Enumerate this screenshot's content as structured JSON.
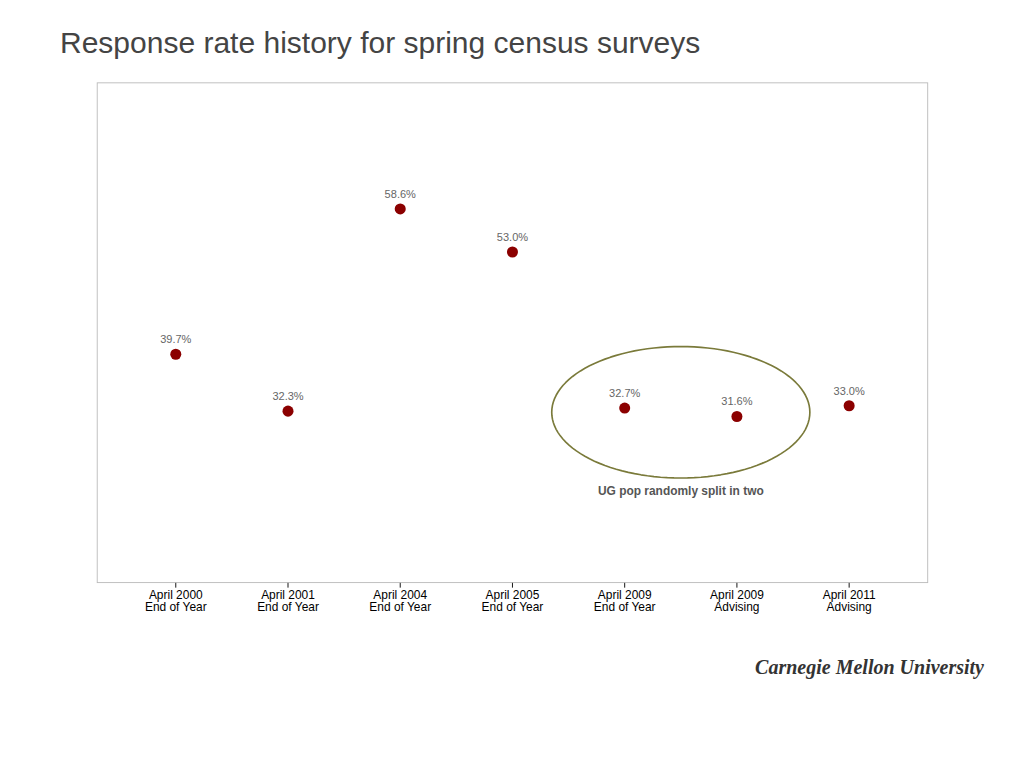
{
  "chart_data": {
    "type": "scatter",
    "title": "Response rate history for spring census surveys",
    "caption": "Carnegie Mellon University",
    "categories": [
      "April 2000\nEnd of Year",
      "April 2001\nEnd of Year",
      "April 2004\nEnd of Year",
      "April 2005\nEnd of Year",
      "April 2009\nEnd of Year",
      "April 2009\nAdvising",
      "April 2011\nAdvising"
    ],
    "values": [
      39.7,
      32.3,
      58.6,
      53.0,
      32.7,
      31.6,
      33.0
    ],
    "value_labels": [
      "39.7%",
      "32.3%",
      "58.6%",
      "53.0%",
      "32.7%",
      "31.6%",
      "33.0%"
    ],
    "data_labels": true,
    "color": "#8b0000",
    "ylim": [
      10,
      75
    ],
    "tick_labels": "x",
    "grid": false,
    "annotations": [
      {
        "text": "UG pop randomly split in two",
        "categories": [
          "April 2009\nEnd of Year",
          "April 2009\nAdvising"
        ],
        "color": "#7a7a3a"
      }
    ]
  }
}
